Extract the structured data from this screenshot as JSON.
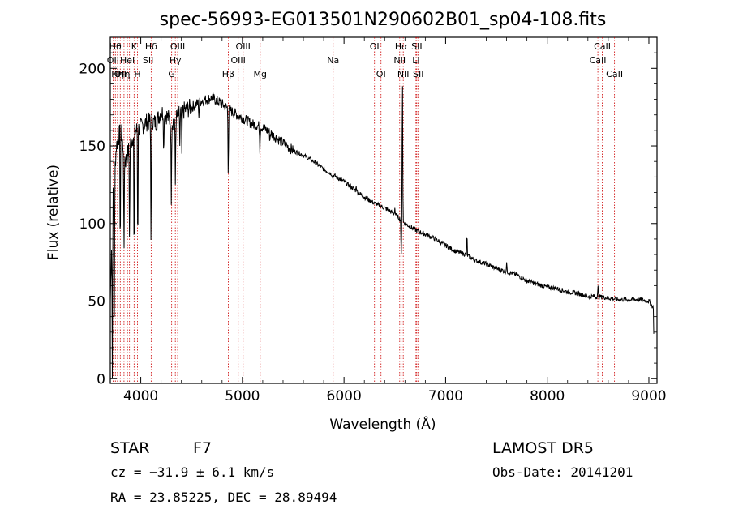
{
  "chart_data": {
    "type": "line",
    "title": "spec-56993-EG013501N290602B01_sp04-108.fits",
    "xlabel": "Wavelength (Å)",
    "ylabel": "Flux (relative)",
    "xlim": [
      3700,
      9080
    ],
    "ylim": [
      -3,
      220
    ],
    "xticks": [
      4000,
      5000,
      6000,
      7000,
      8000,
      9000
    ],
    "yticks": [
      0,
      50,
      100,
      150,
      200
    ],
    "grid": false,
    "line_color": "#000000",
    "marker_color": "#cc0000",
    "continuum": [
      [
        3700,
        50
      ],
      [
        3720,
        110
      ],
      [
        3760,
        150
      ],
      [
        3800,
        160
      ],
      [
        3850,
        140
      ],
      [
        3900,
        152
      ],
      [
        3950,
        160
      ],
      [
        4000,
        162
      ],
      [
        4050,
        165
      ],
      [
        4100,
        166
      ],
      [
        4150,
        165
      ],
      [
        4200,
        172
      ],
      [
        4250,
        170
      ],
      [
        4300,
        165
      ],
      [
        4350,
        168
      ],
      [
        4400,
        172
      ],
      [
        4500,
        175
      ],
      [
        4600,
        179
      ],
      [
        4700,
        181
      ],
      [
        4800,
        177
      ],
      [
        4900,
        172
      ],
      [
        5000,
        168
      ],
      [
        5100,
        164
      ],
      [
        5200,
        162
      ],
      [
        5300,
        157
      ],
      [
        5400,
        152
      ],
      [
        5500,
        147
      ],
      [
        5600,
        144
      ],
      [
        5700,
        140
      ],
      [
        5800,
        135
      ],
      [
        5900,
        131
      ],
      [
        6000,
        127
      ],
      [
        6100,
        122
      ],
      [
        6200,
        117
      ],
      [
        6300,
        113
      ],
      [
        6400,
        110
      ],
      [
        6500,
        106
      ],
      [
        6600,
        100
      ],
      [
        6700,
        96
      ],
      [
        6800,
        93
      ],
      [
        6900,
        90
      ],
      [
        7000,
        86
      ],
      [
        7100,
        82
      ],
      [
        7200,
        80
      ],
      [
        7300,
        76
      ],
      [
        7400,
        74
      ],
      [
        7500,
        71
      ],
      [
        7600,
        69
      ],
      [
        7700,
        67
      ],
      [
        7800,
        63
      ],
      [
        7900,
        61
      ],
      [
        8000,
        59
      ],
      [
        8100,
        58
      ],
      [
        8200,
        56
      ],
      [
        8300,
        55
      ],
      [
        8400,
        53
      ],
      [
        8500,
        53
      ],
      [
        8600,
        52
      ],
      [
        8700,
        51
      ],
      [
        8800,
        51
      ],
      [
        8900,
        51
      ],
      [
        9000,
        50
      ],
      [
        9040,
        46
      ]
    ],
    "features": [
      [
        3720,
        0
      ],
      [
        3740,
        40
      ],
      [
        3798,
        68
      ],
      [
        3835,
        72
      ],
      [
        3889,
        80
      ],
      [
        3934,
        60
      ],
      [
        3970,
        70
      ],
      [
        4101,
        75
      ],
      [
        4226,
        140
      ],
      [
        4300,
        112
      ],
      [
        4340,
        125
      ],
      [
        4384,
        150
      ],
      [
        4404,
        145
      ],
      [
        4572,
        168
      ],
      [
        4861,
        125
      ],
      [
        5172,
        145
      ],
      [
        5270,
        152
      ],
      [
        5890,
        128
      ],
      [
        6120,
        124
      ],
      [
        6500,
        110
      ],
      [
        6563,
        76
      ],
      [
        6575,
        206
      ],
      [
        7210,
        95
      ],
      [
        7600,
        75
      ],
      [
        8500,
        60
      ],
      [
        8542,
        54
      ],
      [
        9050,
        20
      ]
    ],
    "spectral_lines": [
      {
        "x": 3727,
        "label": "OII",
        "row": 2
      },
      {
        "x": 3750,
        "label": "Hθ",
        "row": 0
      },
      {
        "x": 3771,
        "label": "Hη",
        "row": 3
      },
      {
        "x": 3798,
        "label": "OII",
        "row": 3
      },
      {
        "x": 3835,
        "label": "Hη",
        "row": 3
      },
      {
        "x": 3869,
        "label": "HeI",
        "row": 2
      },
      {
        "x": 3889,
        "label": "",
        "row": 3
      },
      {
        "x": 3934,
        "label": "K",
        "row": 0
      },
      {
        "x": 3968,
        "label": "H",
        "row": 3
      },
      {
        "x": 4072,
        "label": "SII",
        "row": 2
      },
      {
        "x": 4102,
        "label": "Hδ",
        "row": 0
      },
      {
        "x": 4304,
        "label": "G",
        "row": 3
      },
      {
        "x": 4340,
        "label": "Hγ",
        "row": 2
      },
      {
        "x": 4363,
        "label": "OIII",
        "row": 0
      },
      {
        "x": 4861,
        "label": "Hβ",
        "row": 3
      },
      {
        "x": 4959,
        "label": "OIII",
        "row": 2
      },
      {
        "x": 5007,
        "label": "OIII",
        "row": 0
      },
      {
        "x": 5175,
        "label": "Mg",
        "row": 3
      },
      {
        "x": 5893,
        "label": "Na",
        "row": 2
      },
      {
        "x": 6300,
        "label": "OI",
        "row": 0
      },
      {
        "x": 6364,
        "label": "OI",
        "row": 3
      },
      {
        "x": 6548,
        "label": "NII",
        "row": 2
      },
      {
        "x": 6563,
        "label": "Hα",
        "row": 0
      },
      {
        "x": 6583,
        "label": "NII",
        "row": 3
      },
      {
        "x": 6708,
        "label": "Li",
        "row": 2
      },
      {
        "x": 6716,
        "label": "SII",
        "row": 0
      },
      {
        "x": 6731,
        "label": "SII",
        "row": 3
      },
      {
        "x": 8498,
        "label": "CaII",
        "row": 2
      },
      {
        "x": 8542,
        "label": "CaII",
        "row": 0
      },
      {
        "x": 8662,
        "label": "CaII",
        "row": 3
      }
    ]
  },
  "info": {
    "object_class": "STAR",
    "subclass": "F7",
    "survey": "LAMOST DR5",
    "redshift_text": "cz = −31.9 ± 6.1 km/s",
    "obs_date": "Obs-Date: 20141201",
    "coords": "RA =  23.85225, DEC =  28.89494"
  }
}
